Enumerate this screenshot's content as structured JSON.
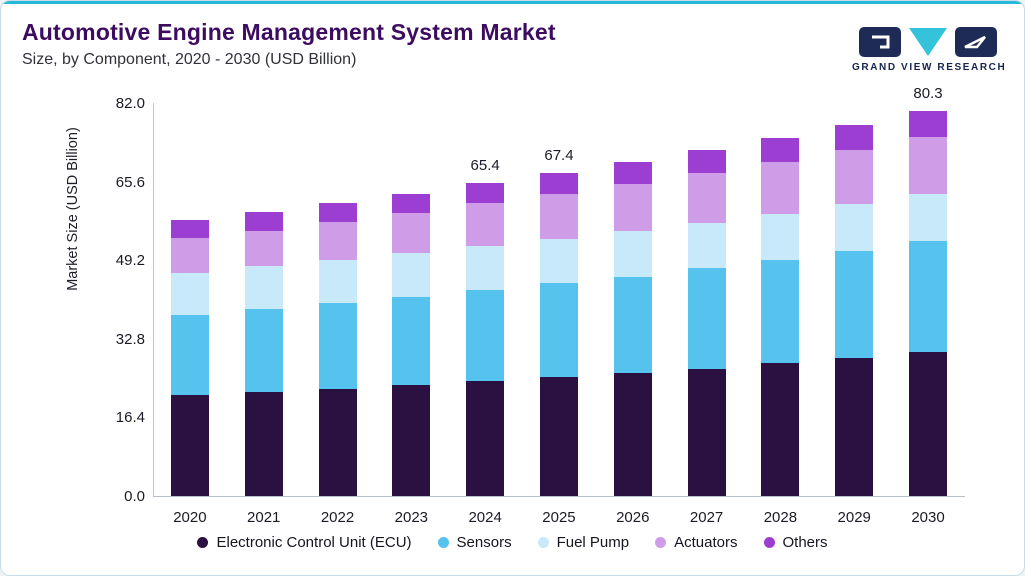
{
  "header": {
    "title": "Automotive Engine Management System Market",
    "subtitle": "Size, by Component, 2020 - 2030 (USD Billion)"
  },
  "logo": {
    "text": "GRAND VIEW RESEARCH",
    "navy": "#1d2b56",
    "teal": "#35c3dc"
  },
  "chart_data": {
    "type": "bar",
    "subtype": "stacked",
    "title": "Automotive Engine Management System Market Size, by Component, 2020 - 2030 (USD Billion)",
    "ylabel": "Market Size (USD Billion)",
    "ylim": [
      0,
      82.0
    ],
    "yticks": [
      0.0,
      16.4,
      32.8,
      49.2,
      65.6,
      82.0
    ],
    "grid": false,
    "legend_position": "bottom",
    "categories": [
      2020,
      2021,
      2022,
      2023,
      2024,
      2025,
      2026,
      2027,
      2028,
      2029,
      2030
    ],
    "series": [
      {
        "key": "ecu",
        "name": "Electronic Control Unit (ECU)",
        "color": "#2b1042",
        "values": [
          21.0,
          21.7,
          22.4,
          23.2,
          24.0,
          24.8,
          25.6,
          26.6,
          27.7,
          28.8,
          30.0
        ]
      },
      {
        "key": "sensors",
        "name": "Sensors",
        "color": "#55c3ee",
        "values": [
          16.8,
          17.3,
          17.8,
          18.4,
          19.0,
          19.6,
          20.2,
          20.9,
          21.6,
          22.4,
          23.2
        ]
      },
      {
        "key": "fuel-pump",
        "name": "Fuel Pump",
        "color": "#c7e9f9",
        "values": [
          8.8,
          8.9,
          9.0,
          9.1,
          9.2,
          9.3,
          9.4,
          9.5,
          9.6,
          9.7,
          9.8
        ]
      },
      {
        "key": "actuators",
        "name": "Actuators",
        "color": "#cf9de7",
        "values": [
          7.2,
          7.5,
          7.9,
          8.3,
          8.9,
          9.3,
          9.8,
          10.3,
          10.8,
          11.3,
          11.8
        ]
      },
      {
        "key": "others",
        "name": "Others",
        "color": "#9d3ed2",
        "values": [
          3.8,
          3.9,
          4.0,
          4.1,
          4.3,
          4.4,
          4.6,
          4.8,
          5.0,
          5.2,
          5.5
        ]
      }
    ],
    "totals": [
      57.6,
      59.3,
      61.1,
      63.1,
      65.4,
      67.4,
      69.6,
      72.1,
      74.7,
      77.4,
      80.3
    ],
    "data_labels": {
      "2024": "65.4",
      "2025": "67.4",
      "2030": "80.3"
    }
  }
}
